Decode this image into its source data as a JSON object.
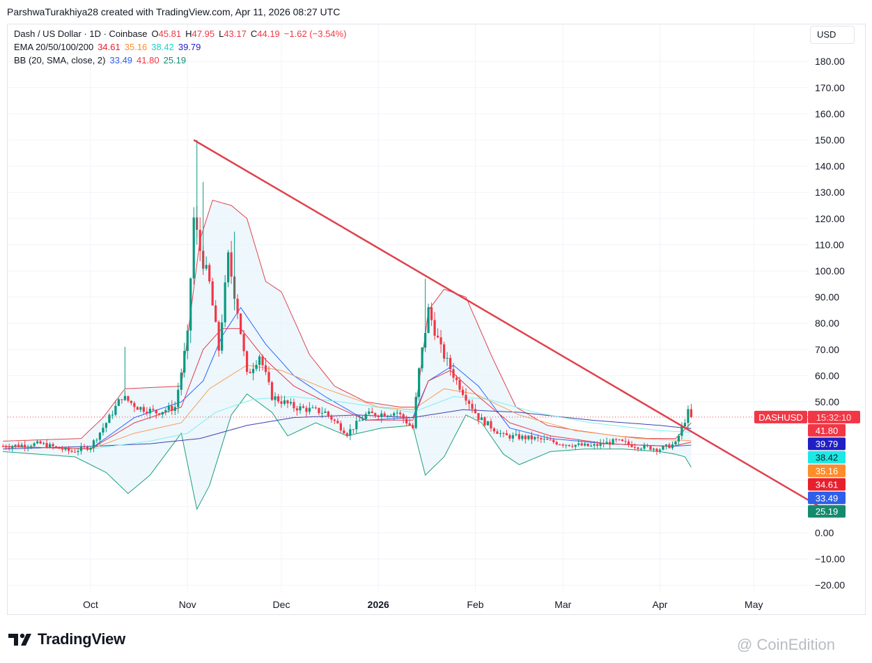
{
  "header": {
    "credit": "ParshwaTurakhiya28 created with TradingView.com, Apr 11, 2026 08:27 UTC"
  },
  "legend": {
    "symbol": "Dash / US Dollar · 1D · Coinbase",
    "o_label": "O",
    "o_value": "45.81",
    "h_label": "H",
    "h_value": "47.95",
    "l_label": "L",
    "l_value": "43.17",
    "c_label": "C",
    "c_value": "44.19",
    "change": "−1.62 (−3.54%)",
    "ema_label": "EMA 20/50/100/200",
    "ema_values": [
      "34.61",
      "35.16",
      "38.42",
      "39.79"
    ],
    "bb_label": "BB (20, SMA, close, 2)",
    "bb_values": [
      "33.49",
      "41.80",
      "25.19"
    ]
  },
  "currency": "USD",
  "branding": {
    "logo_text": "TradingView",
    "watermark": "@ CoinEdition"
  },
  "colors": {
    "up": "#089981",
    "down": "#f23645",
    "trendline": "#e0414d",
    "ema20": "#e8364a",
    "ema50": "#f7a05a",
    "ema100": "#7df0ec",
    "ema200": "#3f3fb0",
    "bb_basis": "#2962ff",
    "bb_upper": "#e0414d",
    "bb_lower": "#1f9e78",
    "bb_fill": "#e6f4fb"
  },
  "chart_data": {
    "type": "candlestick",
    "x_ticks": [
      "Oct",
      "Nov",
      "Dec",
      "2026",
      "Feb",
      "Mar",
      "Apr",
      "May"
    ],
    "y_ticks": [
      -20,
      -10,
      0,
      10,
      20,
      30,
      40,
      50,
      60,
      70,
      80,
      90,
      100,
      110,
      120,
      130,
      140,
      150,
      160,
      170,
      180
    ],
    "y_tick_labels": [
      "−20.00",
      "−10.00",
      "0.00",
      "",
      "",
      "",
      "",
      "50.00",
      "60.00",
      "70.00",
      "80.00",
      "90.00",
      "100.00",
      "110.00",
      "120.00",
      "130.00",
      "140.00",
      "150.00",
      "160.00",
      "170.00",
      "180.00"
    ],
    "ylim": [
      -25,
      195
    ],
    "last_price_label": "DASHUSD",
    "countdown": "15:32:10",
    "price_tags": [
      {
        "value": 41.8,
        "label": "41.80",
        "color": "#f23645"
      },
      {
        "value": 39.79,
        "label": "39.79",
        "color": "#1f1fc4"
      },
      {
        "value": 38.42,
        "label": "38.42",
        "color": "#1de9e4"
      },
      {
        "value": 35.16,
        "label": "35.16",
        "color": "#ff8c2b"
      },
      {
        "value": 34.61,
        "label": "34.61",
        "color": "#e8202e"
      },
      {
        "value": 33.49,
        "label": "33.49",
        "color": "#2f5fe8"
      },
      {
        "value": 25.19,
        "label": "25.19",
        "color": "#168a6e"
      }
    ],
    "last_price": 44.19,
    "trendline": {
      "from": [
        "2025-11-03",
        150
      ],
      "to": [
        "2026-05-22",
        10
      ]
    },
    "price_keypoints": [
      [
        "2025-09-03",
        33
      ],
      [
        "2025-09-15",
        34
      ],
      [
        "2025-09-25",
        31
      ],
      [
        "2025-10-01",
        33
      ],
      [
        "2025-10-06",
        42
      ],
      [
        "2025-10-11",
        52
      ],
      [
        "2025-10-16",
        48
      ],
      [
        "2025-10-22",
        46
      ],
      [
        "2025-10-28",
        48
      ],
      [
        "2025-11-01",
        75
      ],
      [
        "2025-11-03",
        120
      ],
      [
        "2025-11-05",
        108
      ],
      [
        "2025-11-08",
        95
      ],
      [
        "2025-11-11",
        70
      ],
      [
        "2025-11-14",
        105
      ],
      [
        "2025-11-17",
        85
      ],
      [
        "2025-11-20",
        60
      ],
      [
        "2025-11-24",
        68
      ],
      [
        "2025-11-28",
        52
      ],
      [
        "2025-12-05",
        48
      ],
      [
        "2025-12-15",
        46
      ],
      [
        "2025-12-22",
        38
      ],
      [
        "2025-12-28",
        45
      ],
      [
        "2026-01-07",
        46
      ],
      [
        "2026-01-12",
        40
      ],
      [
        "2026-01-14",
        62
      ],
      [
        "2026-01-17",
        85
      ],
      [
        "2026-01-21",
        70
      ],
      [
        "2026-01-26",
        58
      ],
      [
        "2026-01-30",
        50
      ],
      [
        "2026-02-02",
        44
      ],
      [
        "2026-02-10",
        37
      ],
      [
        "2026-02-20",
        36
      ],
      [
        "2026-03-01",
        34
      ],
      [
        "2026-03-10",
        33
      ],
      [
        "2026-03-18",
        35
      ],
      [
        "2026-03-25",
        33
      ],
      [
        "2026-04-01",
        32
      ],
      [
        "2026-04-06",
        34
      ],
      [
        "2026-04-08",
        40
      ],
      [
        "2026-04-10",
        46
      ],
      [
        "2026-04-11",
        44.19
      ]
    ],
    "bb_upper_keypoints": [
      [
        "2025-09-03",
        35
      ],
      [
        "2025-09-28",
        36
      ],
      [
        "2025-10-05",
        44
      ],
      [
        "2025-10-12",
        55
      ],
      [
        "2025-10-30",
        56
      ],
      [
        "2025-11-05",
        112
      ],
      [
        "2025-11-09",
        127
      ],
      [
        "2025-11-15",
        125
      ],
      [
        "2025-11-20",
        120
      ],
      [
        "2025-11-26",
        96
      ],
      [
        "2025-12-01",
        92
      ],
      [
        "2025-12-10",
        68
      ],
      [
        "2025-12-18",
        56
      ],
      [
        "2025-12-28",
        50
      ],
      [
        "2026-01-08",
        48
      ],
      [
        "2026-01-13",
        48
      ],
      [
        "2026-01-17",
        85
      ],
      [
        "2026-01-22",
        93
      ],
      [
        "2026-01-29",
        90
      ],
      [
        "2026-02-06",
        68
      ],
      [
        "2026-02-14",
        48
      ],
      [
        "2026-02-24",
        41
      ],
      [
        "2026-03-06",
        39
      ],
      [
        "2026-03-18",
        37
      ],
      [
        "2026-03-28",
        36
      ],
      [
        "2026-04-06",
        36
      ],
      [
        "2026-04-11",
        42
      ]
    ],
    "bb_lower_keypoints": [
      [
        "2025-09-03",
        31
      ],
      [
        "2025-09-26",
        29
      ],
      [
        "2025-10-06",
        23
      ],
      [
        "2025-10-13",
        15
      ],
      [
        "2025-10-20",
        22
      ],
      [
        "2025-10-30",
        38
      ],
      [
        "2025-11-04",
        9
      ],
      [
        "2025-11-08",
        18
      ],
      [
        "2025-11-15",
        45
      ],
      [
        "2025-11-20",
        53
      ],
      [
        "2025-11-28",
        46
      ],
      [
        "2025-12-03",
        37
      ],
      [
        "2025-12-12",
        42
      ],
      [
        "2025-12-22",
        37
      ],
      [
        "2026-01-02",
        40
      ],
      [
        "2026-01-12",
        41
      ],
      [
        "2026-01-16",
        22
      ],
      [
        "2026-01-22",
        29
      ],
      [
        "2026-01-29",
        45
      ],
      [
        "2026-02-03",
        42
      ],
      [
        "2026-02-10",
        30
      ],
      [
        "2026-02-15",
        26
      ],
      [
        "2026-02-25",
        31
      ],
      [
        "2026-03-08",
        32
      ],
      [
        "2026-03-20",
        32
      ],
      [
        "2026-04-01",
        31
      ],
      [
        "2026-04-06",
        30
      ],
      [
        "2026-04-09",
        29
      ],
      [
        "2026-04-11",
        25
      ]
    ],
    "bb_basis_keypoints": [
      [
        "2025-09-03",
        33
      ],
      [
        "2025-10-01",
        32
      ],
      [
        "2025-10-15",
        44
      ],
      [
        "2025-10-30",
        50
      ],
      [
        "2025-11-06",
        58
      ],
      [
        "2025-11-12",
        75
      ],
      [
        "2025-11-18",
        86
      ],
      [
        "2025-11-26",
        72
      ],
      [
        "2025-12-05",
        60
      ],
      [
        "2025-12-15",
        52
      ],
      [
        "2025-12-28",
        43
      ],
      [
        "2026-01-12",
        44
      ],
      [
        "2026-01-17",
        58
      ],
      [
        "2026-01-25",
        64
      ],
      [
        "2026-02-02",
        56
      ],
      [
        "2026-02-12",
        40
      ],
      [
        "2026-02-25",
        36
      ],
      [
        "2026-03-15",
        34
      ],
      [
        "2026-04-05",
        33
      ],
      [
        "2026-04-11",
        33.49
      ]
    ],
    "ema20_keypoints": [
      [
        "2025-09-03",
        33
      ],
      [
        "2025-10-01",
        32
      ],
      [
        "2025-10-15",
        42
      ],
      [
        "2025-10-30",
        48
      ],
      [
        "2025-11-06",
        70
      ],
      [
        "2025-11-12",
        78
      ],
      [
        "2025-11-18",
        78
      ],
      [
        "2025-11-26",
        66
      ],
      [
        "2025-12-05",
        56
      ],
      [
        "2025-12-15",
        50
      ],
      [
        "2025-12-28",
        43
      ],
      [
        "2026-01-12",
        43
      ],
      [
        "2026-01-17",
        58
      ],
      [
        "2026-01-24",
        62
      ],
      [
        "2026-02-02",
        52
      ],
      [
        "2026-02-12",
        42
      ],
      [
        "2026-02-25",
        37
      ],
      [
        "2026-03-15",
        34
      ],
      [
        "2026-04-05",
        33
      ],
      [
        "2026-04-11",
        34.61
      ]
    ],
    "ema50_keypoints": [
      [
        "2025-09-03",
        33
      ],
      [
        "2025-10-01",
        32
      ],
      [
        "2025-10-15",
        38
      ],
      [
        "2025-10-30",
        42
      ],
      [
        "2025-11-08",
        55
      ],
      [
        "2025-11-20",
        64
      ],
      [
        "2025-12-01",
        62
      ],
      [
        "2025-12-15",
        55
      ],
      [
        "2026-01-01",
        48
      ],
      [
        "2026-01-12",
        47
      ],
      [
        "2026-01-22",
        55
      ],
      [
        "2026-02-01",
        53
      ],
      [
        "2026-02-15",
        45
      ],
      [
        "2026-03-05",
        39
      ],
      [
        "2026-03-25",
        36
      ],
      [
        "2026-04-11",
        35.16
      ]
    ],
    "ema100_keypoints": [
      [
        "2025-09-03",
        33
      ],
      [
        "2025-10-01",
        32
      ],
      [
        "2025-10-20",
        35
      ],
      [
        "2025-11-01",
        38
      ],
      [
        "2025-11-10",
        46
      ],
      [
        "2025-11-22",
        51
      ],
      [
        "2025-12-05",
        52
      ],
      [
        "2025-12-20",
        50
      ],
      [
        "2026-01-12",
        46
      ],
      [
        "2026-01-25",
        52
      ],
      [
        "2026-02-05",
        51
      ],
      [
        "2026-02-20",
        46
      ],
      [
        "2026-03-10",
        42
      ],
      [
        "2026-04-01",
        39
      ],
      [
        "2026-04-11",
        38.42
      ]
    ],
    "ema200_keypoints": [
      [
        "2025-09-03",
        32
      ],
      [
        "2025-10-01",
        33
      ],
      [
        "2025-10-20",
        34
      ],
      [
        "2025-11-05",
        36
      ],
      [
        "2025-11-20",
        41
      ],
      [
        "2025-12-05",
        44
      ],
      [
        "2025-12-25",
        45
      ],
      [
        "2026-01-12",
        44
      ],
      [
        "2026-01-28",
        47
      ],
      [
        "2026-02-15",
        46
      ],
      [
        "2026-03-10",
        43
      ],
      [
        "2026-04-01",
        41
      ],
      [
        "2026-04-11",
        39.79
      ]
    ]
  }
}
